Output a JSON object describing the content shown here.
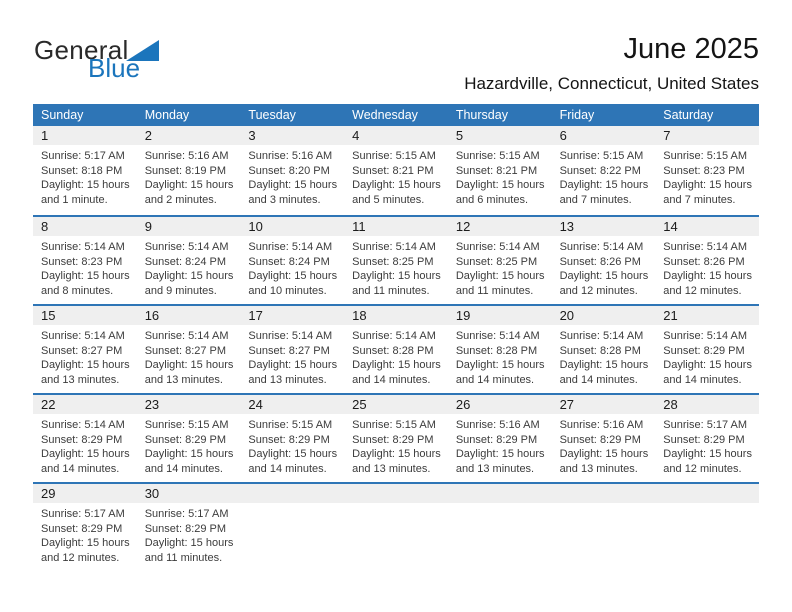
{
  "colors": {
    "header_blue": "#2E75B6",
    "logo_blue": "#1B75BC",
    "band_gray": "#EFEFEF"
  },
  "logo": {
    "line1": "General",
    "line2": "Blue",
    "triangle_icon": "blue-right-triangle"
  },
  "title": "June 2025",
  "subtitle": "Hazardville, Connecticut, United States",
  "calendar": {
    "weekdays": [
      "Sunday",
      "Monday",
      "Tuesday",
      "Wednesday",
      "Thursday",
      "Friday",
      "Saturday"
    ],
    "labels": {
      "sunrise": "Sunrise:",
      "sunset": "Sunset:",
      "daylight": "Daylight:"
    },
    "weeks": [
      [
        {
          "day": 1,
          "sunrise": "5:17 AM",
          "sunset": "8:18 PM",
          "daylight": "15 hours and 1 minute."
        },
        {
          "day": 2,
          "sunrise": "5:16 AM",
          "sunset": "8:19 PM",
          "daylight": "15 hours and 2 minutes."
        },
        {
          "day": 3,
          "sunrise": "5:16 AM",
          "sunset": "8:20 PM",
          "daylight": "15 hours and 3 minutes."
        },
        {
          "day": 4,
          "sunrise": "5:15 AM",
          "sunset": "8:21 PM",
          "daylight": "15 hours and 5 minutes."
        },
        {
          "day": 5,
          "sunrise": "5:15 AM",
          "sunset": "8:21 PM",
          "daylight": "15 hours and 6 minutes."
        },
        {
          "day": 6,
          "sunrise": "5:15 AM",
          "sunset": "8:22 PM",
          "daylight": "15 hours and 7 minutes."
        },
        {
          "day": 7,
          "sunrise": "5:15 AM",
          "sunset": "8:23 PM",
          "daylight": "15 hours and 7 minutes."
        }
      ],
      [
        {
          "day": 8,
          "sunrise": "5:14 AM",
          "sunset": "8:23 PM",
          "daylight": "15 hours and 8 minutes."
        },
        {
          "day": 9,
          "sunrise": "5:14 AM",
          "sunset": "8:24 PM",
          "daylight": "15 hours and 9 minutes."
        },
        {
          "day": 10,
          "sunrise": "5:14 AM",
          "sunset": "8:24 PM",
          "daylight": "15 hours and 10 minutes."
        },
        {
          "day": 11,
          "sunrise": "5:14 AM",
          "sunset": "8:25 PM",
          "daylight": "15 hours and 11 minutes."
        },
        {
          "day": 12,
          "sunrise": "5:14 AM",
          "sunset": "8:25 PM",
          "daylight": "15 hours and 11 minutes."
        },
        {
          "day": 13,
          "sunrise": "5:14 AM",
          "sunset": "8:26 PM",
          "daylight": "15 hours and 12 minutes."
        },
        {
          "day": 14,
          "sunrise": "5:14 AM",
          "sunset": "8:26 PM",
          "daylight": "15 hours and 12 minutes."
        }
      ],
      [
        {
          "day": 15,
          "sunrise": "5:14 AM",
          "sunset": "8:27 PM",
          "daylight": "15 hours and 13 minutes."
        },
        {
          "day": 16,
          "sunrise": "5:14 AM",
          "sunset": "8:27 PM",
          "daylight": "15 hours and 13 minutes."
        },
        {
          "day": 17,
          "sunrise": "5:14 AM",
          "sunset": "8:27 PM",
          "daylight": "15 hours and 13 minutes."
        },
        {
          "day": 18,
          "sunrise": "5:14 AM",
          "sunset": "8:28 PM",
          "daylight": "15 hours and 14 minutes."
        },
        {
          "day": 19,
          "sunrise": "5:14 AM",
          "sunset": "8:28 PM",
          "daylight": "15 hours and 14 minutes."
        },
        {
          "day": 20,
          "sunrise": "5:14 AM",
          "sunset": "8:28 PM",
          "daylight": "15 hours and 14 minutes."
        },
        {
          "day": 21,
          "sunrise": "5:14 AM",
          "sunset": "8:29 PM",
          "daylight": "15 hours and 14 minutes."
        }
      ],
      [
        {
          "day": 22,
          "sunrise": "5:14 AM",
          "sunset": "8:29 PM",
          "daylight": "15 hours and 14 minutes."
        },
        {
          "day": 23,
          "sunrise": "5:15 AM",
          "sunset": "8:29 PM",
          "daylight": "15 hours and 14 minutes."
        },
        {
          "day": 24,
          "sunrise": "5:15 AM",
          "sunset": "8:29 PM",
          "daylight": "15 hours and 14 minutes."
        },
        {
          "day": 25,
          "sunrise": "5:15 AM",
          "sunset": "8:29 PM",
          "daylight": "15 hours and 13 minutes."
        },
        {
          "day": 26,
          "sunrise": "5:16 AM",
          "sunset": "8:29 PM",
          "daylight": "15 hours and 13 minutes."
        },
        {
          "day": 27,
          "sunrise": "5:16 AM",
          "sunset": "8:29 PM",
          "daylight": "15 hours and 13 minutes."
        },
        {
          "day": 28,
          "sunrise": "5:17 AM",
          "sunset": "8:29 PM",
          "daylight": "15 hours and 12 minutes."
        }
      ],
      [
        {
          "day": 29,
          "sunrise": "5:17 AM",
          "sunset": "8:29 PM",
          "daylight": "15 hours and 12 minutes."
        },
        {
          "day": 30,
          "sunrise": "5:17 AM",
          "sunset": "8:29 PM",
          "daylight": "15 hours and 11 minutes."
        },
        null,
        null,
        null,
        null,
        null
      ]
    ]
  }
}
